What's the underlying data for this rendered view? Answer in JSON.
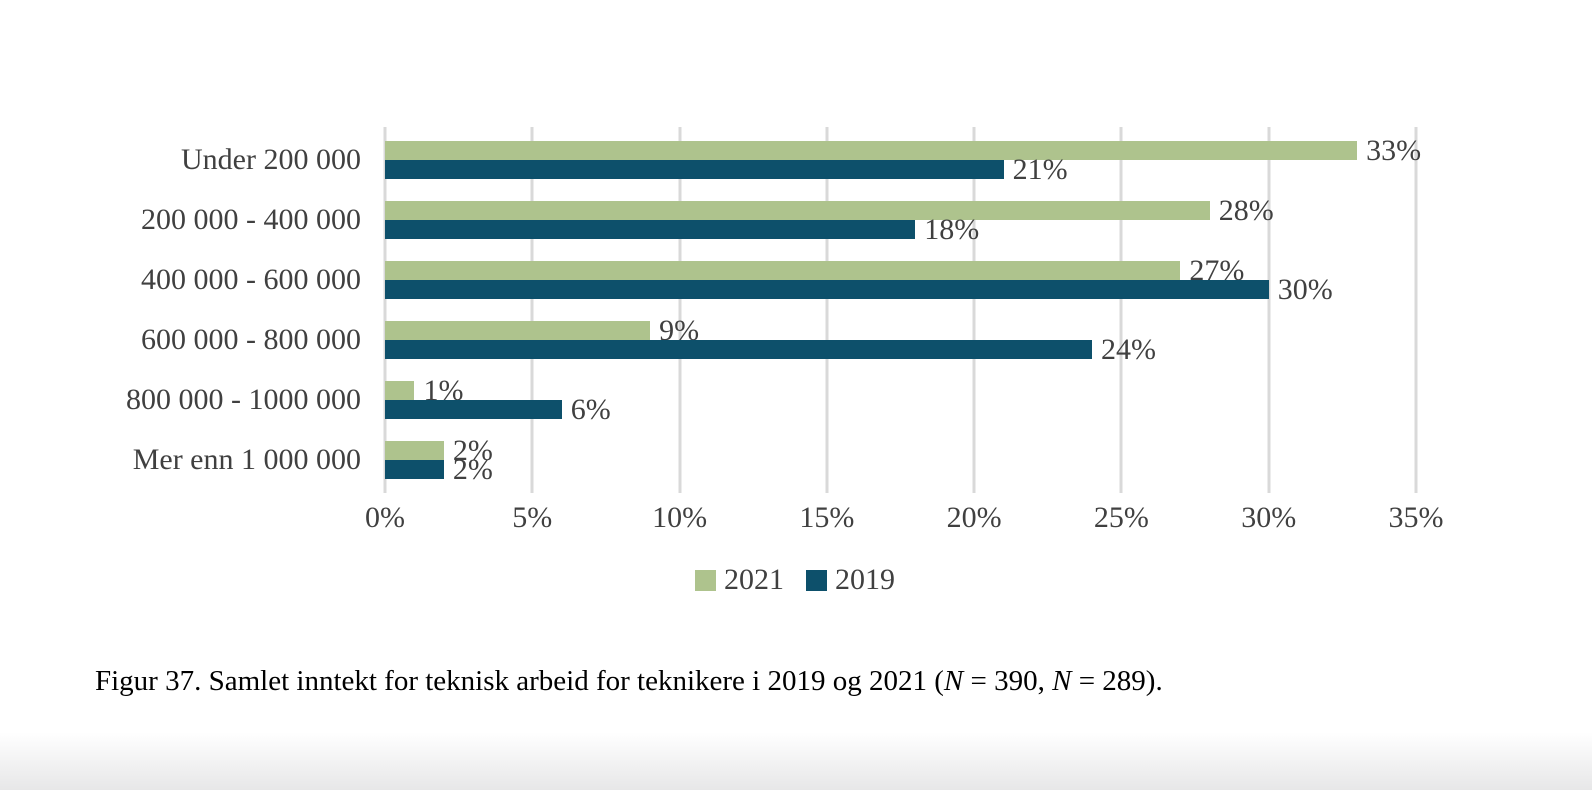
{
  "figure": {
    "caption": {
      "prefix": "Figur 37. Samlet inntekt for teknisk arbeid for teknikere i 2019 og 2021 (",
      "n1": "N",
      "mid1": " = 390, ",
      "n2": "N",
      "mid2": " = 289)."
    }
  },
  "chart_data": {
    "type": "bar",
    "orientation": "horizontal",
    "title": "",
    "categories": [
      "Under 200 000",
      "200 000 - 400 000",
      "400 000 - 600 000",
      "600 000 - 800 000",
      "800 000 - 1000 000",
      "Mer enn 1 000 000"
    ],
    "series": [
      {
        "name": "2021",
        "color": "#AEC38D",
        "values": [
          33,
          28,
          27,
          9,
          1,
          2
        ]
      },
      {
        "name": "2019",
        "color": "#0D506B",
        "values": [
          21,
          18,
          30,
          24,
          6,
          2
        ]
      }
    ],
    "value_label_suffix": "%",
    "data_labels": "outside-end",
    "xlim": [
      0,
      35
    ],
    "x_tick_step": 5,
    "x_tick_labels": [
      "0%",
      "5%",
      "10%",
      "15%",
      "20%",
      "25%",
      "30%",
      "35%"
    ],
    "grid": true,
    "grid_color": "#D9D9D9",
    "text_color": "#404040",
    "legend_position": "bottom"
  }
}
